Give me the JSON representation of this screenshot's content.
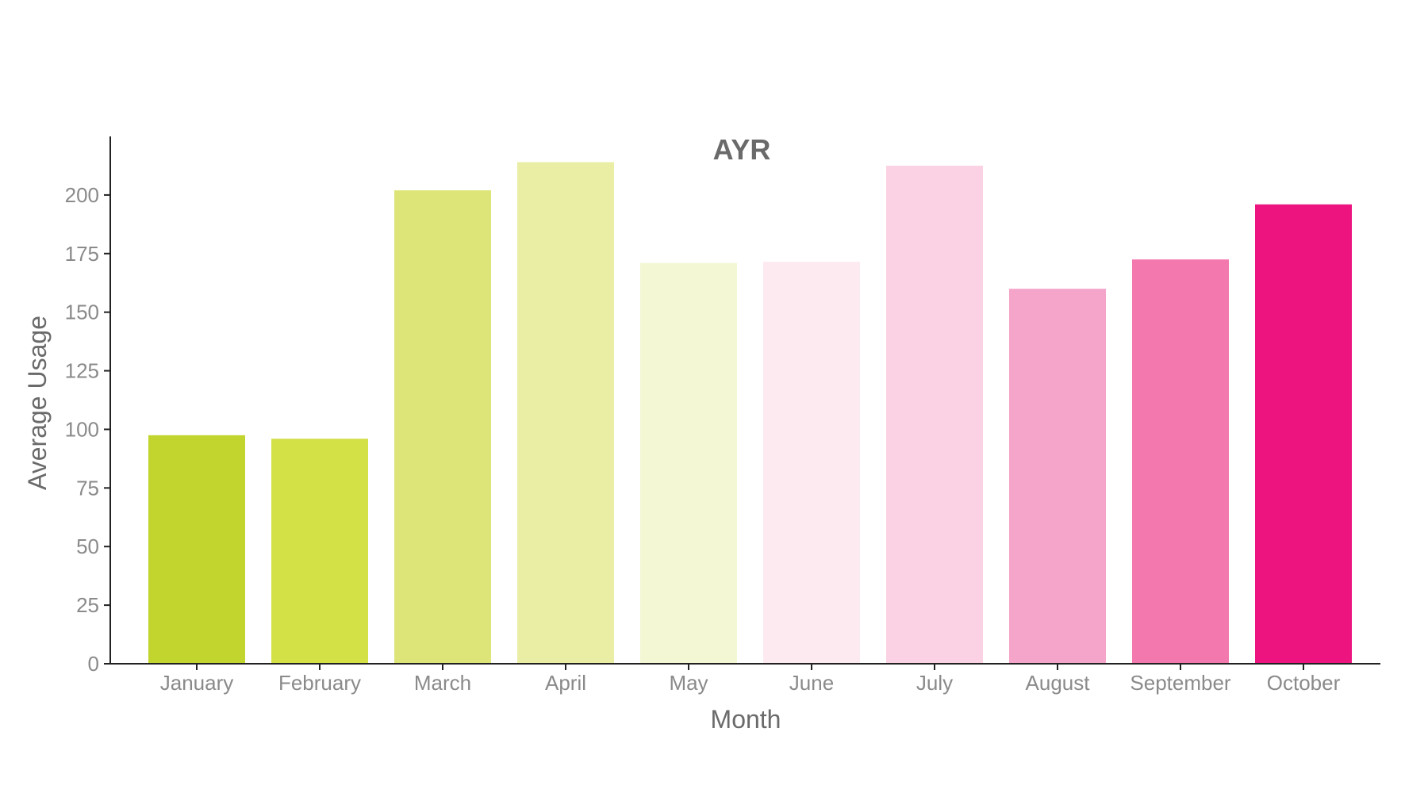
{
  "chart_data": {
    "type": "bar",
    "title": "AYR",
    "xlabel": "Month",
    "ylabel": "Average Usage",
    "categories": [
      "January",
      "February",
      "March",
      "April",
      "May",
      "June",
      "July",
      "August",
      "September",
      "October"
    ],
    "values": [
      97.5,
      96,
      202,
      214,
      171,
      171.5,
      212.5,
      160,
      172.5,
      196
    ],
    "colors": [
      "#c2d52f",
      "#d3e046",
      "#dee578",
      "#e9eea4",
      "#f4f7d3",
      "#fdeaf1",
      "#fad2e4",
      "#f5a5c9",
      "#f278ae",
      "#ed1480"
    ],
    "ylim": [
      0,
      225
    ],
    "yticks": [
      0,
      25,
      50,
      75,
      100,
      125,
      150,
      175,
      200
    ],
    "grid": false,
    "legend": "none"
  }
}
